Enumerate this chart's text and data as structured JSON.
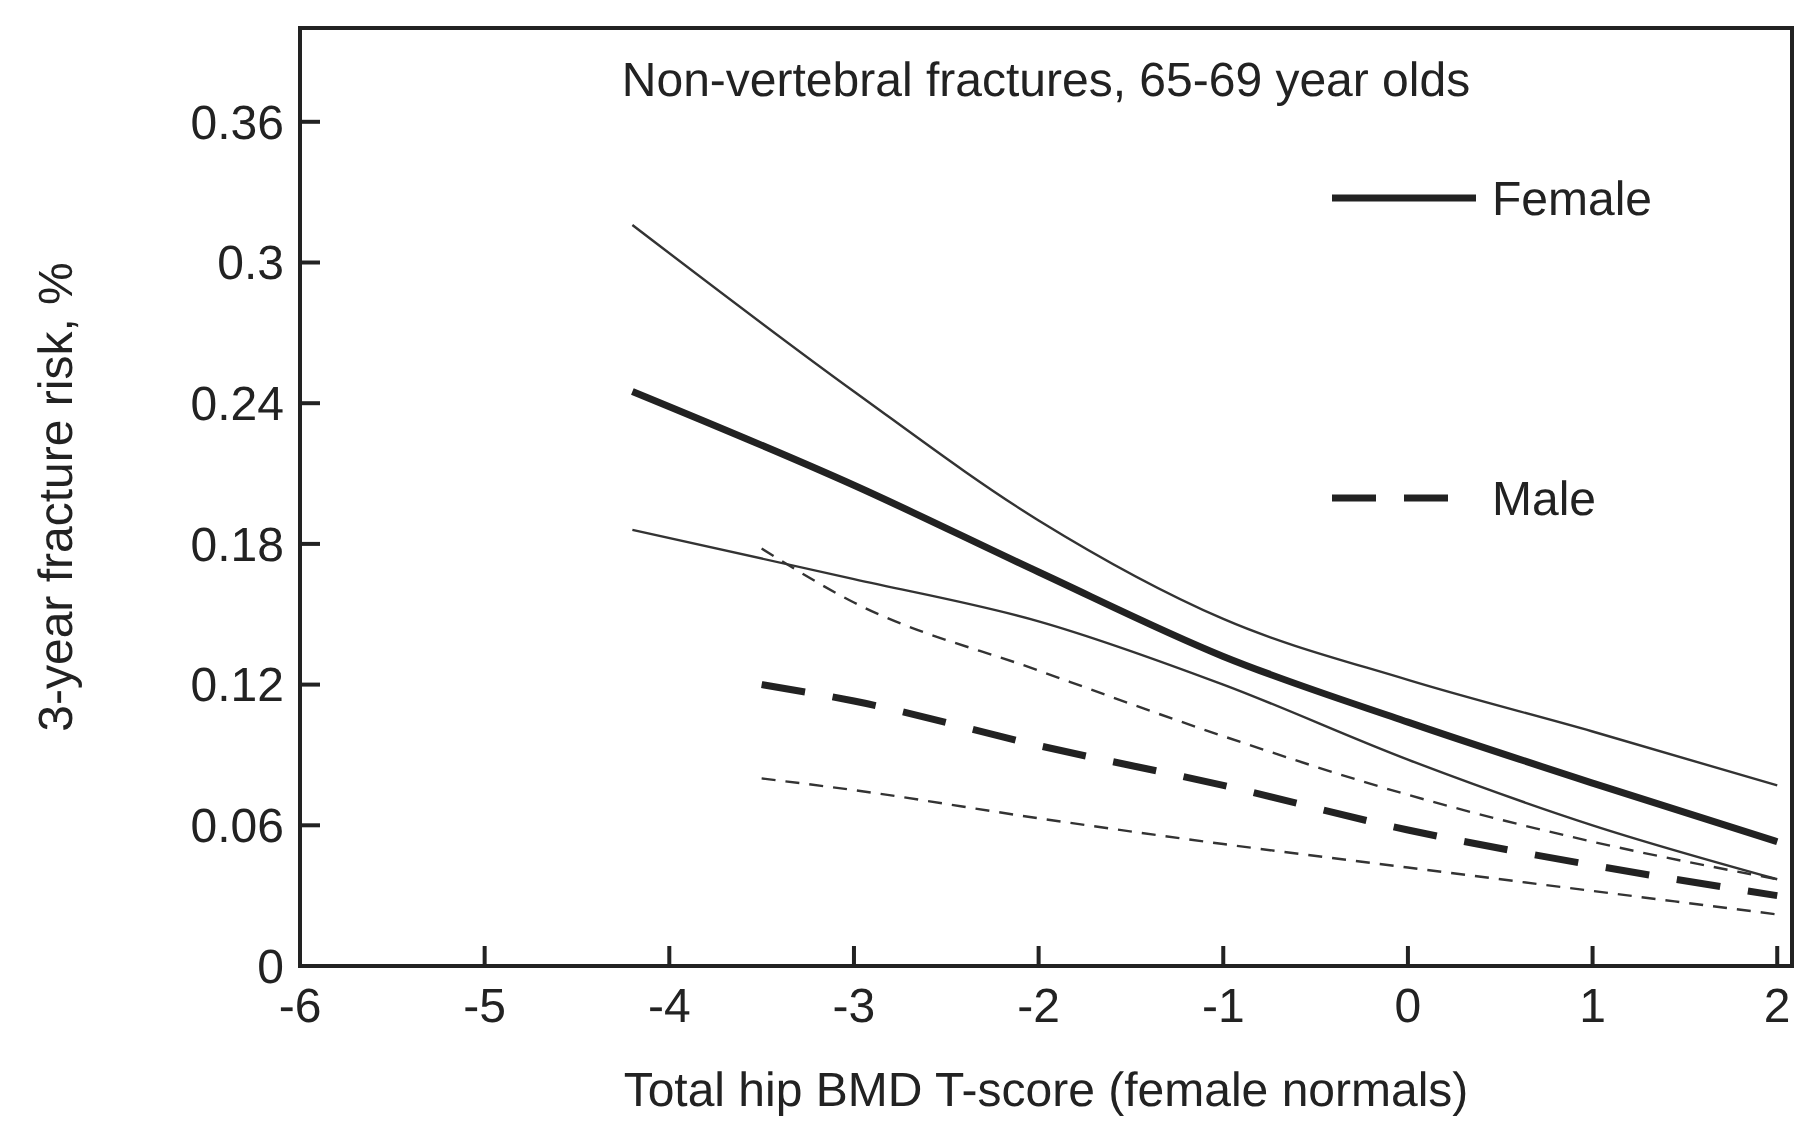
{
  "chart_data": {
    "type": "line",
    "title": "Non-vertebral fractures, 65-69 year olds",
    "xlabel": "Total hip BMD T-score (female normals)",
    "ylabel": "3-year fracture risk, %",
    "xlim": [
      -6,
      2.08
    ],
    "ylim": [
      0,
      0.4
    ],
    "xticks": [
      -6,
      -5,
      -4,
      -3,
      -2,
      -1,
      0,
      1,
      2
    ],
    "yticks": [
      0,
      0.06,
      0.12,
      0.18,
      0.24,
      0.3,
      0.36
    ],
    "legend": "top right",
    "grid": false,
    "marker": "none",
    "series": [
      {
        "name": "Female",
        "color": "#222222",
        "line_style": "solid",
        "x": [
          -4.2,
          -3,
          -2,
          -1,
          0,
          1,
          2
        ],
        "values": [
          0.245,
          0.205,
          0.168,
          0.132,
          0.104,
          0.078,
          0.053
        ]
      },
      {
        "color": "#333333",
        "line_style": "solid",
        "x": [
          -4.2,
          -3,
          -2,
          -1,
          0,
          1,
          2
        ],
        "values": [
          0.316,
          0.245,
          0.19,
          0.148,
          0.122,
          0.1,
          0.077
        ]
      },
      {
        "color": "#333333",
        "line_style": "solid",
        "x": [
          -4.2,
          -3,
          -2,
          -1,
          0,
          1,
          2
        ],
        "values": [
          0.186,
          0.165,
          0.147,
          0.12,
          0.088,
          0.06,
          0.037
        ]
      },
      {
        "name": "Male",
        "color": "#222222",
        "line_style": "dashed",
        "x": [
          -3.5,
          -3,
          -2,
          -1,
          0,
          1,
          2
        ],
        "values": [
          0.12,
          0.113,
          0.094,
          0.077,
          0.058,
          0.043,
          0.03
        ]
      },
      {
        "color": "#333333",
        "line_style": "dashed",
        "x": [
          -3.5,
          -3,
          -2,
          -1,
          0,
          1,
          2
        ],
        "values": [
          0.178,
          0.155,
          0.126,
          0.098,
          0.073,
          0.053,
          0.037
        ]
      },
      {
        "color": "#333333",
        "line_style": "dashed",
        "x": [
          -3.5,
          -3,
          -2,
          -1,
          0,
          1,
          2
        ],
        "values": [
          0.08,
          0.075,
          0.063,
          0.052,
          0.042,
          0.032,
          0.022
        ]
      }
    ]
  }
}
